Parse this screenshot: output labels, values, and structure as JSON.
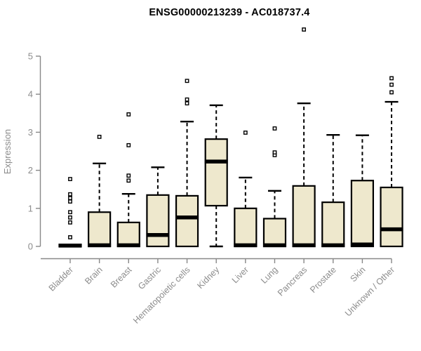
{
  "title": "ENSG00000213239 - AC018737.4",
  "chart_data": {
    "type": "boxplot",
    "title": "ENSG00000213239 - AC018737.4",
    "xlabel": "",
    "ylabel": "Expression",
    "ylim": [
      0,
      5
    ],
    "yticks": [
      0,
      1,
      2,
      3,
      4,
      5
    ],
    "grid": false,
    "legend": false,
    "colors": {
      "box_fill": "#EEE8CD",
      "box_stroke": "#000000",
      "median": "#000000",
      "axis": "#888888",
      "tick_label": "#8c8c8c",
      "title": "#000000",
      "background": "#ffffff"
    },
    "categories": [
      "Bladder",
      "Brain",
      "Breast",
      "Gastric",
      "Hematopoietic cells",
      "Kidney",
      "Liver",
      "Lung",
      "Pancreas",
      "Prostate",
      "Skin",
      "Unknown / Other"
    ],
    "series": [
      {
        "category": "Bladder",
        "whisker_low": 0,
        "q1": 0,
        "median": 0.02,
        "q3": 0.05,
        "whisker_high": 0.05,
        "outliers": [
          0.24,
          0.63,
          0.76,
          0.9,
          1.18,
          1.27,
          1.37,
          1.77
        ]
      },
      {
        "category": "Brain",
        "whisker_low": 0,
        "q1": 0,
        "median": 0.03,
        "q3": 0.9,
        "whisker_high": 2.18,
        "outliers": [
          2.88
        ]
      },
      {
        "category": "Breast",
        "whisker_low": 0,
        "q1": 0,
        "median": 0.03,
        "q3": 0.63,
        "whisker_high": 1.38,
        "outliers": [
          1.73,
          1.86,
          2.66,
          3.47
        ]
      },
      {
        "category": "Gastric",
        "whisker_low": 0,
        "q1": 0,
        "median": 0.3,
        "q3": 1.35,
        "whisker_high": 2.08,
        "outliers": []
      },
      {
        "category": "Hematopoietic cells",
        "whisker_low": 0,
        "q1": 0,
        "median": 0.76,
        "q3": 1.33,
        "whisker_high": 3.28,
        "outliers": [
          3.76,
          3.86,
          4.35
        ]
      },
      {
        "category": "Kidney",
        "whisker_low": 0,
        "q1": 1.07,
        "median": 2.23,
        "q3": 2.82,
        "whisker_high": 3.71,
        "outliers": []
      },
      {
        "category": "Liver",
        "whisker_low": 0,
        "q1": 0,
        "median": 0.03,
        "q3": 1.0,
        "whisker_high": 1.81,
        "outliers": [
          2.99
        ]
      },
      {
        "category": "Lung",
        "whisker_low": 0,
        "q1": 0,
        "median": 0.03,
        "q3": 0.73,
        "whisker_high": 1.46,
        "outliers": [
          2.4,
          2.47,
          3.1
        ]
      },
      {
        "category": "Pancreas",
        "whisker_low": 0,
        "q1": 0,
        "median": 0.03,
        "q3": 1.59,
        "whisker_high": 3.76,
        "outliers": [
          5.7
        ]
      },
      {
        "category": "Prostate",
        "whisker_low": 0,
        "q1": 0,
        "median": 0.03,
        "q3": 1.16,
        "whisker_high": 2.93,
        "outliers": []
      },
      {
        "category": "Skin",
        "whisker_low": 0,
        "q1": 0,
        "median": 0.05,
        "q3": 1.73,
        "whisker_high": 2.92,
        "outliers": []
      },
      {
        "category": "Unknown / Other",
        "whisker_low": 0,
        "q1": 0,
        "median": 0.45,
        "q3": 1.55,
        "whisker_high": 3.8,
        "outliers": [
          4.05,
          4.25,
          4.42
        ]
      }
    ]
  }
}
